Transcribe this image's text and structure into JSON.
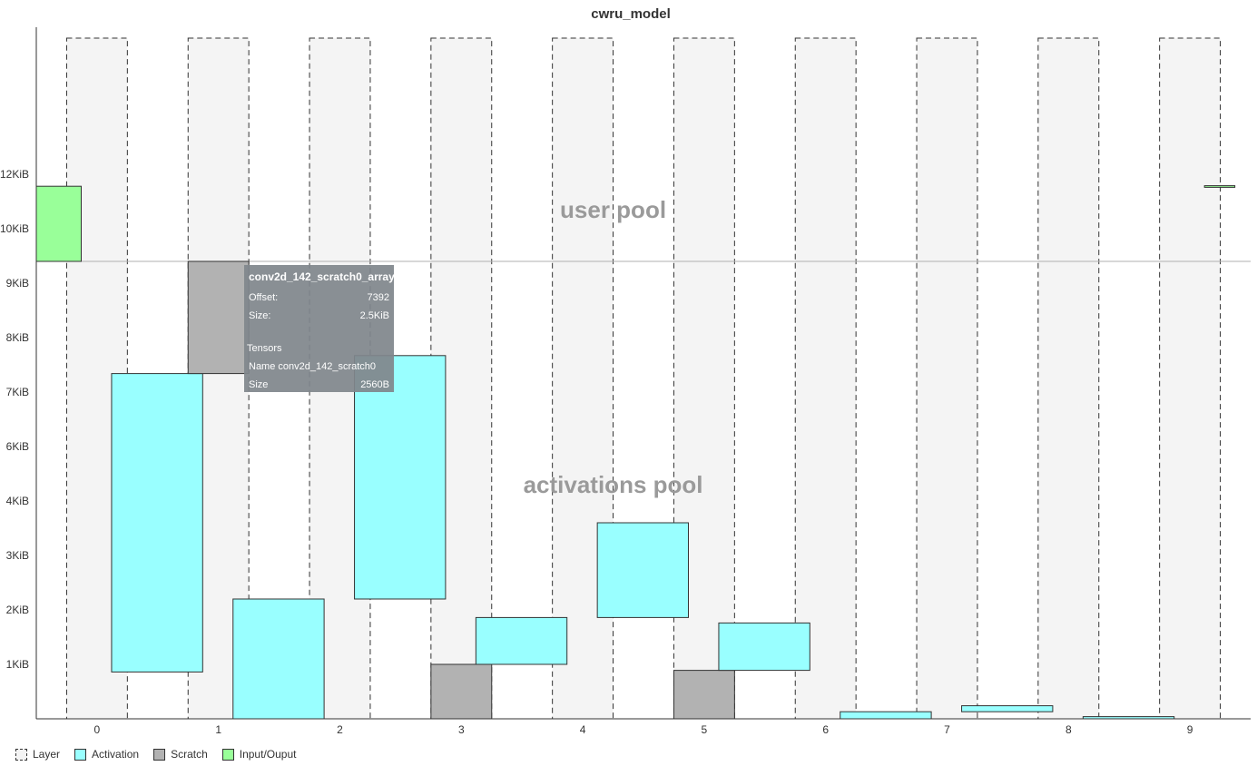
{
  "chart_data": {
    "type": "memory-layout",
    "title": "cwru_model",
    "y_unit": "KiB",
    "ylim": [
      0,
      12.7
    ],
    "y_ticks": [
      {
        "v": 1,
        "label": "1KiB"
      },
      {
        "v": 2,
        "label": "2KiB"
      },
      {
        "v": 3,
        "label": "3KiB"
      },
      {
        "v": 4,
        "label": "4KiB"
      },
      {
        "v": 5,
        "label": "6KiB"
      },
      {
        "v": 6,
        "label": "7KiB"
      },
      {
        "v": 7,
        "label": "8KiB"
      },
      {
        "v": 8,
        "label": "9KiB"
      },
      {
        "v": 9,
        "label": "10KiB"
      },
      {
        "v": 10,
        "label": "12KiB"
      }
    ],
    "xlim": [
      -0.5,
      9.5
    ],
    "x_ticks": [
      "0",
      "1",
      "2",
      "3",
      "4",
      "5",
      "6",
      "7",
      "8",
      "9"
    ],
    "pool_boundary": 8.4,
    "pools": [
      {
        "name": "user pool",
        "x": 4.25,
        "y": 9.2
      },
      {
        "name": "activations pool",
        "x": 4.25,
        "y": 4.15
      }
    ],
    "layers": [
      {
        "id": 0,
        "start": -0.25,
        "end": 0.25
      },
      {
        "id": 1,
        "start": 0.75,
        "end": 1.25
      },
      {
        "id": 2,
        "start": 1.75,
        "end": 2.25
      },
      {
        "id": 3,
        "start": 2.75,
        "end": 3.25
      },
      {
        "id": 4,
        "start": 3.75,
        "end": 4.25
      },
      {
        "id": 5,
        "start": 4.75,
        "end": 5.25
      },
      {
        "id": 6,
        "start": 5.75,
        "end": 6.25
      },
      {
        "id": 7,
        "start": 6.75,
        "end": 7.25
      },
      {
        "id": 8,
        "start": 7.75,
        "end": 8.25
      },
      {
        "id": 9,
        "start": 8.75,
        "end": 9.25
      }
    ],
    "buffers": [
      {
        "kind": "io",
        "x0": -0.5,
        "x1": -0.13,
        "y0": 8.4,
        "y1": 9.78
      },
      {
        "kind": "activation",
        "x0": 0.12,
        "x1": 0.87,
        "y0": 0.86,
        "y1": 6.34
      },
      {
        "kind": "scratch",
        "x0": 0.75,
        "x1": 1.25,
        "y0": 6.34,
        "y1": 8.4
      },
      {
        "kind": "activation",
        "x0": 1.12,
        "x1": 1.87,
        "y0": 0,
        "y1": 2.2
      },
      {
        "kind": "activation",
        "x0": 2.12,
        "x1": 2.87,
        "y0": 2.2,
        "y1": 6.67
      },
      {
        "kind": "scratch",
        "x0": 2.75,
        "x1": 3.25,
        "y0": 0,
        "y1": 1.0
      },
      {
        "kind": "activation",
        "x0": 3.12,
        "x1": 3.87,
        "y0": 1.0,
        "y1": 1.86
      },
      {
        "kind": "activation",
        "x0": 4.12,
        "x1": 4.87,
        "y0": 1.86,
        "y1": 3.6
      },
      {
        "kind": "scratch",
        "x0": 4.75,
        "x1": 5.25,
        "y0": 0,
        "y1": 0.89
      },
      {
        "kind": "activation",
        "x0": 5.12,
        "x1": 5.87,
        "y0": 0.89,
        "y1": 1.76
      },
      {
        "kind": "activation",
        "x0": 6.12,
        "x1": 6.87,
        "y0": 0,
        "y1": 0.13
      },
      {
        "kind": "activation",
        "x0": 7.12,
        "x1": 7.87,
        "y0": 0.13,
        "y1": 0.24
      },
      {
        "kind": "activation",
        "x0": 8.12,
        "x1": 8.87,
        "y0": 0,
        "y1": 0.04
      },
      {
        "kind": "io",
        "x0": 9.12,
        "x1": 9.37,
        "y0": 9.76,
        "y1": 9.79
      }
    ],
    "colors": {
      "activation": "#99ffff",
      "scratch": "#b2b2b2",
      "io": "#99ff99",
      "layer_fill": "#f4f4f4",
      "stroke": "#333333"
    },
    "legend": [
      {
        "kind": "layer",
        "label": "Layer"
      },
      {
        "kind": "activation",
        "label": "Activation"
      },
      {
        "kind": "scratch",
        "label": "Scratch"
      },
      {
        "kind": "io",
        "label": "Input/Ouput"
      }
    ]
  },
  "tooltip": {
    "name": "conv2d_142_scratch0_array",
    "offset_label": "Offset:",
    "offset_value": "7392",
    "size_label": "Size:",
    "size_value": "2.5KiB",
    "tensors_label": "Tensors",
    "tensor_name_label": "Name",
    "tensor_name_value": "conv2d_142_scratch0",
    "tensor_size_label": "Size",
    "tensor_size_value": "2560B"
  }
}
